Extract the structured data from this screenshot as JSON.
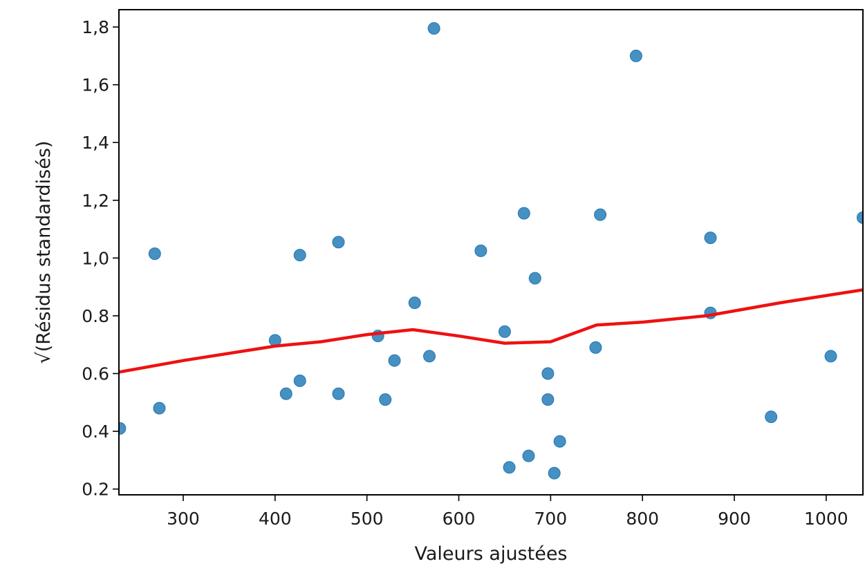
{
  "chart_data": {
    "type": "scatter",
    "xlabel": "Valeurs ajustées",
    "ylabel": "√(Résidus standardisés)",
    "xlim": [
      230,
      1040
    ],
    "ylim": [
      0.18,
      1.86
    ],
    "x_ticks": [
      300,
      400,
      500,
      600,
      700,
      800,
      900,
      1000
    ],
    "x_tick_labels": [
      "300",
      "400",
      "500",
      "600",
      "700",
      "800",
      "900",
      "1000"
    ],
    "y_ticks": [
      0.2,
      0.4,
      0.6,
      0.8,
      1.0,
      1.2,
      1.4,
      1.6,
      1.8
    ],
    "y_tick_labels": [
      "0.2",
      "0.4",
      "0.6",
      "0.8",
      "1,0",
      "1,2",
      "1,4",
      "1,6",
      "1,8"
    ],
    "grid": false,
    "series": [
      {
        "kind": "points",
        "color": "#1f77b4",
        "points": [
          [
            231,
            0.41
          ],
          [
            269,
            1.015
          ],
          [
            274,
            0.48
          ],
          [
            400,
            0.715
          ],
          [
            412,
            0.53
          ],
          [
            427,
            1.01
          ],
          [
            427,
            0.575
          ],
          [
            469,
            1.055
          ],
          [
            469,
            0.53
          ],
          [
            512,
            0.73
          ],
          [
            520,
            0.51
          ],
          [
            530,
            0.645
          ],
          [
            552,
            0.845
          ],
          [
            568,
            0.66
          ],
          [
            573,
            1.795
          ],
          [
            624,
            1.025
          ],
          [
            650,
            0.745
          ],
          [
            655,
            0.275
          ],
          [
            671,
            1.155
          ],
          [
            676,
            0.315
          ],
          [
            683,
            0.93
          ],
          [
            697,
            0.6
          ],
          [
            697,
            0.51
          ],
          [
            704,
            0.255
          ],
          [
            710,
            0.365
          ],
          [
            749,
            0.69
          ],
          [
            754,
            1.15
          ],
          [
            793,
            1.7
          ],
          [
            874,
            1.07
          ],
          [
            874,
            0.81
          ],
          [
            940,
            0.45
          ],
          [
            1005,
            0.66
          ],
          [
            1040,
            1.14
          ]
        ]
      },
      {
        "kind": "line",
        "color": "#ee1111",
        "points": [
          [
            230,
            0.605
          ],
          [
            300,
            0.645
          ],
          [
            400,
            0.695
          ],
          [
            450,
            0.71
          ],
          [
            500,
            0.735
          ],
          [
            550,
            0.752
          ],
          [
            600,
            0.73
          ],
          [
            650,
            0.705
          ],
          [
            700,
            0.71
          ],
          [
            750,
            0.768
          ],
          [
            800,
            0.778
          ],
          [
            870,
            0.8
          ],
          [
            950,
            0.845
          ],
          [
            1040,
            0.89
          ]
        ]
      }
    ]
  }
}
